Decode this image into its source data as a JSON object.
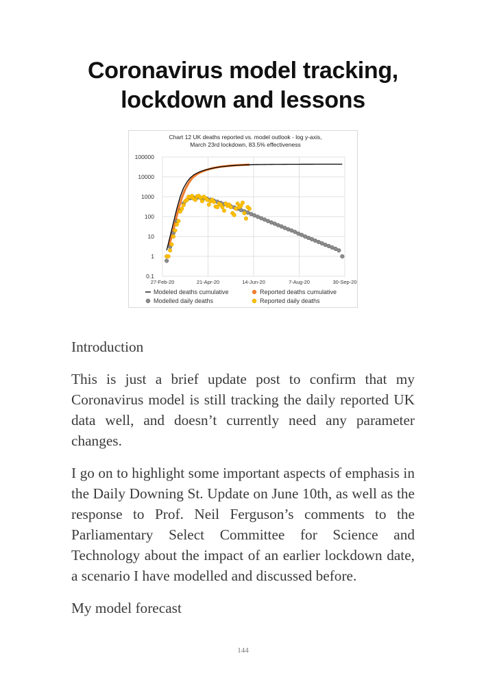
{
  "title": [
    "Coronavirus model tracking,",
    "lockdown and lessons"
  ],
  "chart_data": {
    "type": "line+scatter",
    "title": [
      "Chart 12 UK deaths reported vs. model outlook - log y-axis,",
      "March 23rd lockdown, 83.5% effectiveness"
    ],
    "xlabel": "",
    "ylabel": "",
    "y_scale": "log",
    "ylim": [
      0.1,
      100000
    ],
    "y_ticks": [
      "100000",
      "10000",
      "1000",
      "100",
      "10",
      "1",
      "0.1"
    ],
    "xlim": [
      "2020-02-27",
      "2020-09-30"
    ],
    "x_ticks": [
      "27-Feb-20",
      "21-Apr-20",
      "14-Jun-20",
      "7-Aug-20",
      "30-Sep-20"
    ],
    "grid": true,
    "legend_placement": "bottom",
    "series": [
      {
        "name": "Modeled deaths cumulative",
        "kind": "line",
        "color": "#000000",
        "start_date": "2020-03-03",
        "interval_days": 4,
        "values": [
          2,
          10,
          50,
          250,
          1000,
          2800,
          5500,
          9000,
          12500,
          15500,
          18500,
          21000,
          23500,
          26000,
          28000,
          30000,
          32000,
          33500,
          35000,
          36200,
          37200,
          38200,
          39000,
          39700,
          40300,
          40800,
          41200,
          41500,
          41800,
          42000,
          42200,
          42400,
          42500,
          42600,
          42700,
          42800,
          42900,
          43000,
          43050,
          43100,
          43150,
          43200,
          43250,
          43300,
          43320,
          43340,
          43360,
          43380,
          43400,
          43420,
          43440,
          43460,
          43480
        ]
      },
      {
        "name": "Reported deaths cumulative",
        "kind": "line",
        "color": "#ed7d31",
        "start_date": "2020-03-05",
        "interval_days": 4,
        "values": [
          3,
          10,
          50,
          250,
          900,
          2400,
          4900,
          8500,
          12000,
          15500,
          18500,
          21500,
          24000,
          27000,
          29000,
          31500,
          33000,
          34500,
          36000,
          37300,
          38300,
          39100,
          39900,
          40500,
          41000
        ]
      },
      {
        "name": "Modelled daily deaths",
        "kind": "scatter",
        "color": "#8c8c8c",
        "start_date": "2020-03-03",
        "interval_days": 4,
        "values": [
          0.6,
          3,
          15,
          60,
          200,
          450,
          700,
          850,
          900,
          900,
          880,
          830,
          780,
          700,
          630,
          560,
          490,
          430,
          380,
          330,
          290,
          250,
          215,
          185,
          160,
          135,
          115,
          98,
          83,
          71,
          60,
          51,
          44,
          37,
          32,
          27,
          23,
          20,
          17,
          14,
          12,
          10,
          8.5,
          7.3,
          6.2,
          5.3,
          4.5,
          3.8,
          3.3,
          2.8,
          2.4,
          2,
          1
        ]
      },
      {
        "name": "Reported daily deaths",
        "kind": "scatter",
        "color": "#ffc000",
        "start_date": "2020-03-03",
        "interval_days": 2,
        "values": [
          1,
          1,
          2,
          4,
          10,
          20,
          40,
          60,
          180,
          250,
          380,
          600,
          700,
          1000,
          950,
          1100,
          800,
          700,
          1050,
          1100,
          900,
          600,
          1000,
          850,
          700,
          400,
          600,
          700,
          550,
          320,
          300,
          450,
          400,
          300,
          200,
          450,
          350,
          400,
          300,
          150,
          120,
          250,
          450,
          300,
          350,
          500,
          150,
          80,
          300,
          250
        ]
      }
    ]
  },
  "paragraphs": [
    "Introduction",
    "This is just a brief update post to confirm that my Coronavirus model is still tracking the daily reported UK data well, and doesn’t currently need any parameter changes.",
    "I go on to highlight some important aspects of emphasis in the Daily Downing St. Update on June 10th, as well as the response to Prof. Neil Ferguson’s comments to the Parliamentary Select Committee for Science and Technology about the impact of an earlier lockdown date, a scenario I have modelled and discussed before.",
    "My model forecast"
  ],
  "page_number": "144"
}
